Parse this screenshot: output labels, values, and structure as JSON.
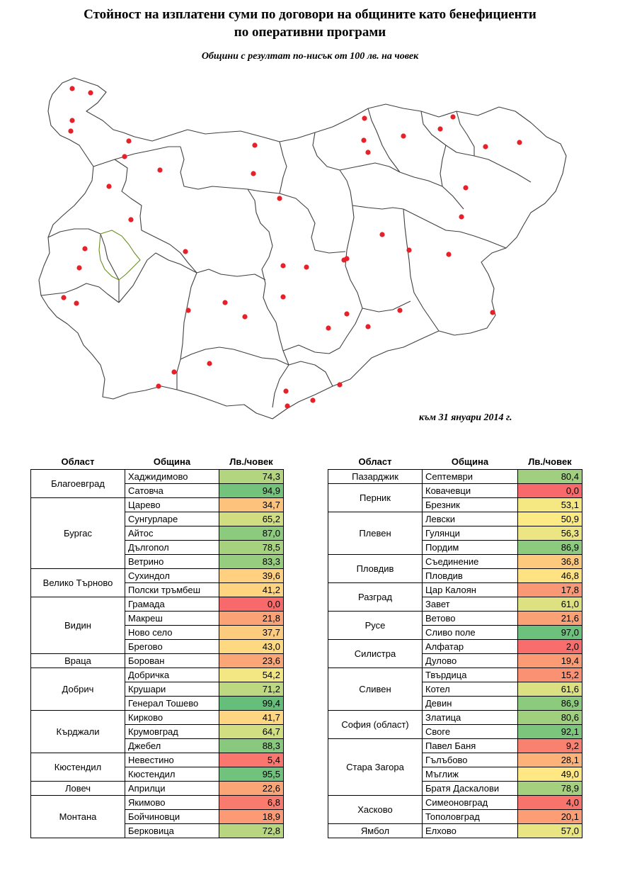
{
  "header": {
    "title_line1": "Стойност на изплатени суми по договори на общините като бенефициенти",
    "title_line2": "по оперативни програми",
    "subtitle": "Общини с резултат по-нисък от 100 лв. на човек"
  },
  "map": {
    "date_note": "към 31 януари 2014 г.",
    "border_color": "#404040",
    "marker_color": "#e8202a"
  },
  "tables": {
    "col_region": "Област",
    "col_municipality": "Община",
    "col_value": "Лв./човек",
    "left": [
      {
        "region": "Благоевград",
        "rows": [
          {
            "name": "Хаджидимово",
            "value": "74,3"
          },
          {
            "name": "Сатовча",
            "value": "94,9"
          }
        ]
      },
      {
        "region": "Бургас",
        "rows": [
          {
            "name": "Царево",
            "value": "34,7"
          },
          {
            "name": "Сунгурларе",
            "value": "65,2"
          },
          {
            "name": "Айтос",
            "value": "87,0"
          },
          {
            "name": "Дългопол",
            "value": "78,5"
          },
          {
            "name": "Ветрино",
            "value": "83,3"
          }
        ]
      },
      {
        "region": "Велико Търново",
        "rows": [
          {
            "name": "Сухиндол",
            "value": "39,6"
          },
          {
            "name": "Полски тръмбеш",
            "value": "41,2"
          }
        ]
      },
      {
        "region": "Видин",
        "rows": [
          {
            "name": "Грамада",
            "value": "0,0"
          },
          {
            "name": "Макреш",
            "value": "21,8"
          },
          {
            "name": "Ново село",
            "value": "37,7"
          },
          {
            "name": "Брегово",
            "value": "43,0"
          }
        ]
      },
      {
        "region": "Враца",
        "rows": [
          {
            "name": "Борован",
            "value": "23,6"
          }
        ]
      },
      {
        "region": "Добрич",
        "rows": [
          {
            "name": "Добричка",
            "value": "54,2"
          },
          {
            "name": "Крушари",
            "value": "71,2"
          },
          {
            "name": "Генерал Тошево",
            "value": "99,4"
          }
        ]
      },
      {
        "region": "Кърджали",
        "rows": [
          {
            "name": "Кирково",
            "value": "41,7"
          },
          {
            "name": "Крумовград",
            "value": "64,7"
          },
          {
            "name": "Джебел",
            "value": "88,3"
          }
        ]
      },
      {
        "region": "Кюстендил",
        "rows": [
          {
            "name": "Невестино",
            "value": "5,4"
          },
          {
            "name": "Кюстендил",
            "value": "95,5"
          }
        ]
      },
      {
        "region": "Ловеч",
        "rows": [
          {
            "name": "Априлци",
            "value": "22,6"
          }
        ]
      },
      {
        "region": "Монтана",
        "rows": [
          {
            "name": "Якимово",
            "value": "6,8"
          },
          {
            "name": "Бойчиновци",
            "value": "18,9"
          },
          {
            "name": "Берковица",
            "value": "72,8"
          }
        ]
      }
    ],
    "right": [
      {
        "region": "Пазарджик",
        "rows": [
          {
            "name": "Септември",
            "value": "80,4"
          }
        ]
      },
      {
        "region": "Перник",
        "rows": [
          {
            "name": "Ковачевци",
            "value": "0,0"
          },
          {
            "name": "Брезник",
            "value": "53,1"
          }
        ]
      },
      {
        "region": "Плевен",
        "rows": [
          {
            "name": "Левски",
            "value": "50,9"
          },
          {
            "name": "Гулянци",
            "value": "56,3"
          },
          {
            "name": "Пордим",
            "value": "86,9"
          }
        ]
      },
      {
        "region": "Пловдив",
        "rows": [
          {
            "name": "Съединение",
            "value": "36,8"
          },
          {
            "name": "Пловдив",
            "value": "46,8"
          }
        ]
      },
      {
        "region": "Разград",
        "rows": [
          {
            "name": "Цар Калоян",
            "value": "17,8"
          },
          {
            "name": "Завет",
            "value": "61,0"
          }
        ]
      },
      {
        "region": "Русе",
        "rows": [
          {
            "name": "Ветово",
            "value": "21,6"
          },
          {
            "name": "Сливо поле",
            "value": "97,0"
          }
        ]
      },
      {
        "region": "Силистра",
        "rows": [
          {
            "name": "Алфатар",
            "value": "2,0"
          },
          {
            "name": "Дулово",
            "value": "19,4"
          }
        ]
      },
      {
        "region": "Сливен",
        "rows": [
          {
            "name": "Твърдица",
            "value": "15,2"
          },
          {
            "name": "Котел",
            "value": "61,6"
          },
          {
            "name": "Девин",
            "value": "86,9"
          }
        ]
      },
      {
        "region": "София (област)",
        "rows": [
          {
            "name": "Златица",
            "value": "80,6"
          },
          {
            "name": "Своге",
            "value": "92,1"
          }
        ]
      },
      {
        "region": "Стара Загора",
        "rows": [
          {
            "name": "Павел Баня",
            "value": "9,2"
          },
          {
            "name": "Гълъбово",
            "value": "28,1"
          },
          {
            "name": "Мъглиж",
            "value": "49,0"
          },
          {
            "name": "Братя Даскалови",
            "value": "78,9"
          }
        ]
      },
      {
        "region": "Хасково",
        "rows": [
          {
            "name": "Симеоновград",
            "value": "4,0"
          },
          {
            "name": "Тополовград",
            "value": "20,1"
          }
        ]
      },
      {
        "region": "Ямбол",
        "rows": [
          {
            "name": "Елхово",
            "value": "57,0"
          }
        ]
      }
    ]
  }
}
